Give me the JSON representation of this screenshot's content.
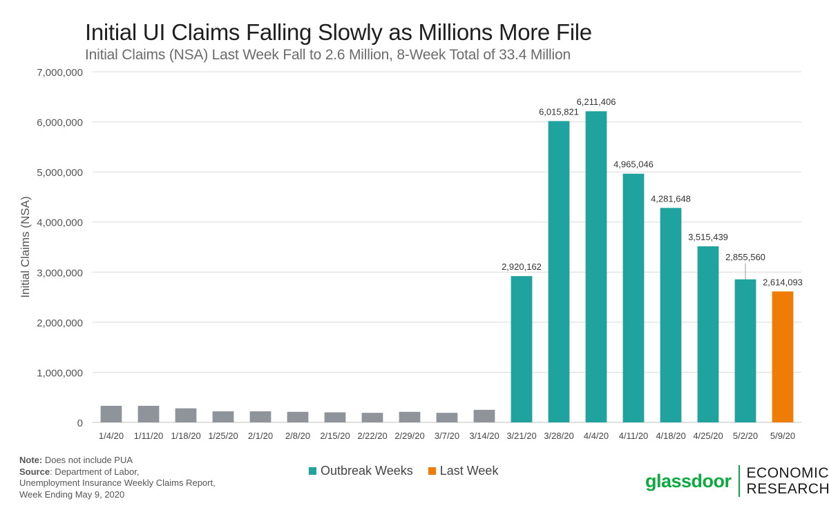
{
  "colors": {
    "outbreak": "#20a39e",
    "last_week": "#ee7c06",
    "baseline": "#8f949a",
    "brand": "#0caa41"
  },
  "legend": {
    "outbreak_label": "Outbreak Weeks",
    "last_week_label": "Last Week"
  },
  "notes": {
    "note_label": "Note:",
    "note_text": " Does not include PUA",
    "source_label": "Source",
    "source_text": ": Department of Labor,",
    "line3": "Unemployment Insurance Weekly Claims Report,",
    "line4": "Week Ending May 9, 2020"
  },
  "logo": {
    "wordmark": "glassdoor",
    "line1": "ECONOMIC",
    "line2": "RESEARCH"
  },
  "chart_data": {
    "type": "bar",
    "title": "Initial UI Claims Falling Slowly as Millions More File",
    "subtitle": "Initial Claims (NSA) Last Week Fall to 2.6 Million, 8-Week Total of 33.4 Million",
    "xlabel": "",
    "ylabel": "Initial Claims (NSA)",
    "ylim": [
      0,
      7000000
    ],
    "yticks": [
      0,
      1000000,
      2000000,
      3000000,
      4000000,
      5000000,
      6000000,
      7000000
    ],
    "ytick_labels": [
      "0",
      "1,000,000",
      "2,000,000",
      "3,000,000",
      "4,000,000",
      "5,000,000",
      "6,000,000",
      "7,000,000"
    ],
    "grid": true,
    "legend_position": "bottom-center",
    "categories": [
      "1/4/20",
      "1/11/20",
      "1/18/20",
      "1/25/20",
      "2/1/20",
      "2/8/20",
      "2/15/20",
      "2/22/20",
      "2/29/20",
      "3/7/20",
      "3/14/20",
      "3/21/20",
      "3/28/20",
      "4/4/20",
      "4/11/20",
      "4/18/20",
      "4/25/20",
      "5/2/20",
      "5/9/20"
    ],
    "values": [
      330000,
      330000,
      280000,
      220000,
      220000,
      210000,
      200000,
      190000,
      210000,
      190000,
      250000,
      2920162,
      6015821,
      6211406,
      4965046,
      4281648,
      3515439,
      2855560,
      2614093
    ],
    "groups": [
      "baseline",
      "baseline",
      "baseline",
      "baseline",
      "baseline",
      "baseline",
      "baseline",
      "baseline",
      "baseline",
      "baseline",
      "baseline",
      "outbreak",
      "outbreak",
      "outbreak",
      "outbreak",
      "outbreak",
      "outbreak",
      "outbreak",
      "last_week"
    ],
    "data_labels": [
      "",
      "",
      "",
      "",
      "",
      "",
      "",
      "",
      "",
      "",
      "",
      "2,920,162",
      "6,015,821",
      "6,211,406",
      "4,965,046",
      "4,281,648",
      "3,515,439",
      "2,855,560",
      "2,614,093"
    ]
  }
}
